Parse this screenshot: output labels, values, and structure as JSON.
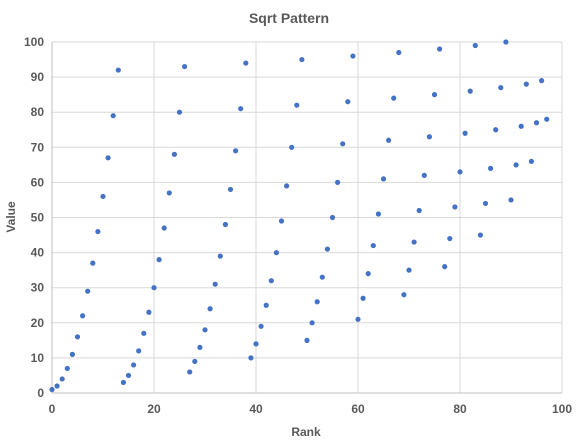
{
  "chart_data": {
    "type": "scatter",
    "title": "Sqrt Pattern",
    "xlabel": "Rank",
    "ylabel": "Value",
    "xlim": [
      0,
      100
    ],
    "ylim": [
      0,
      100
    ],
    "xticks": [
      0,
      20,
      40,
      60,
      80,
      100
    ],
    "yticks": [
      0,
      10,
      20,
      30,
      40,
      50,
      60,
      70,
      80,
      90,
      100
    ],
    "grid": true,
    "legend": "none",
    "point_color": "#4472c4",
    "series": [
      {
        "points": [
          [
            0,
            1
          ],
          [
            1,
            2
          ],
          [
            2,
            4
          ],
          [
            3,
            7
          ],
          [
            4,
            11
          ],
          [
            5,
            16
          ],
          [
            6,
            22
          ],
          [
            7,
            29
          ],
          [
            8,
            37
          ],
          [
            9,
            46
          ],
          [
            10,
            56
          ],
          [
            11,
            67
          ],
          [
            12,
            79
          ],
          [
            13,
            92
          ],
          [
            14,
            3
          ],
          [
            15,
            5
          ],
          [
            16,
            8
          ],
          [
            17,
            12
          ],
          [
            18,
            17
          ],
          [
            19,
            23
          ],
          [
            20,
            30
          ],
          [
            21,
            38
          ],
          [
            22,
            47
          ],
          [
            23,
            57
          ],
          [
            24,
            68
          ],
          [
            25,
            80
          ],
          [
            26,
            93
          ],
          [
            27,
            6
          ],
          [
            28,
            9
          ],
          [
            29,
            13
          ],
          [
            30,
            18
          ],
          [
            31,
            24
          ],
          [
            32,
            31
          ],
          [
            33,
            39
          ],
          [
            34,
            48
          ],
          [
            35,
            58
          ],
          [
            36,
            69
          ],
          [
            37,
            81
          ],
          [
            38,
            94
          ],
          [
            39,
            10
          ],
          [
            40,
            14
          ],
          [
            41,
            19
          ],
          [
            42,
            25
          ],
          [
            43,
            32
          ],
          [
            44,
            40
          ],
          [
            45,
            49
          ],
          [
            46,
            59
          ],
          [
            47,
            70
          ],
          [
            48,
            82
          ],
          [
            49,
            95
          ],
          [
            50,
            15
          ],
          [
            51,
            20
          ],
          [
            52,
            26
          ],
          [
            53,
            33
          ],
          [
            54,
            41
          ],
          [
            55,
            50
          ],
          [
            56,
            60
          ],
          [
            57,
            71
          ],
          [
            58,
            83
          ],
          [
            59,
            96
          ],
          [
            60,
            21
          ],
          [
            61,
            27
          ],
          [
            62,
            34
          ],
          [
            63,
            42
          ],
          [
            64,
            51
          ],
          [
            65,
            61
          ],
          [
            66,
            72
          ],
          [
            67,
            84
          ],
          [
            68,
            97
          ],
          [
            69,
            28
          ],
          [
            70,
            35
          ],
          [
            71,
            43
          ],
          [
            72,
            52
          ],
          [
            73,
            62
          ],
          [
            74,
            73
          ],
          [
            75,
            85
          ],
          [
            76,
            98
          ],
          [
            77,
            36
          ],
          [
            78,
            44
          ],
          [
            79,
            53
          ],
          [
            80,
            63
          ],
          [
            81,
            74
          ],
          [
            82,
            86
          ],
          [
            83,
            99
          ],
          [
            84,
            45
          ],
          [
            85,
            54
          ],
          [
            86,
            64
          ],
          [
            87,
            75
          ],
          [
            88,
            87
          ],
          [
            89,
            100
          ],
          [
            90,
            55
          ],
          [
            91,
            65
          ],
          [
            92,
            76
          ],
          [
            93,
            88
          ],
          [
            94,
            66
          ],
          [
            95,
            77
          ],
          [
            96,
            89
          ],
          [
            97,
            78
          ]
        ]
      }
    ]
  }
}
